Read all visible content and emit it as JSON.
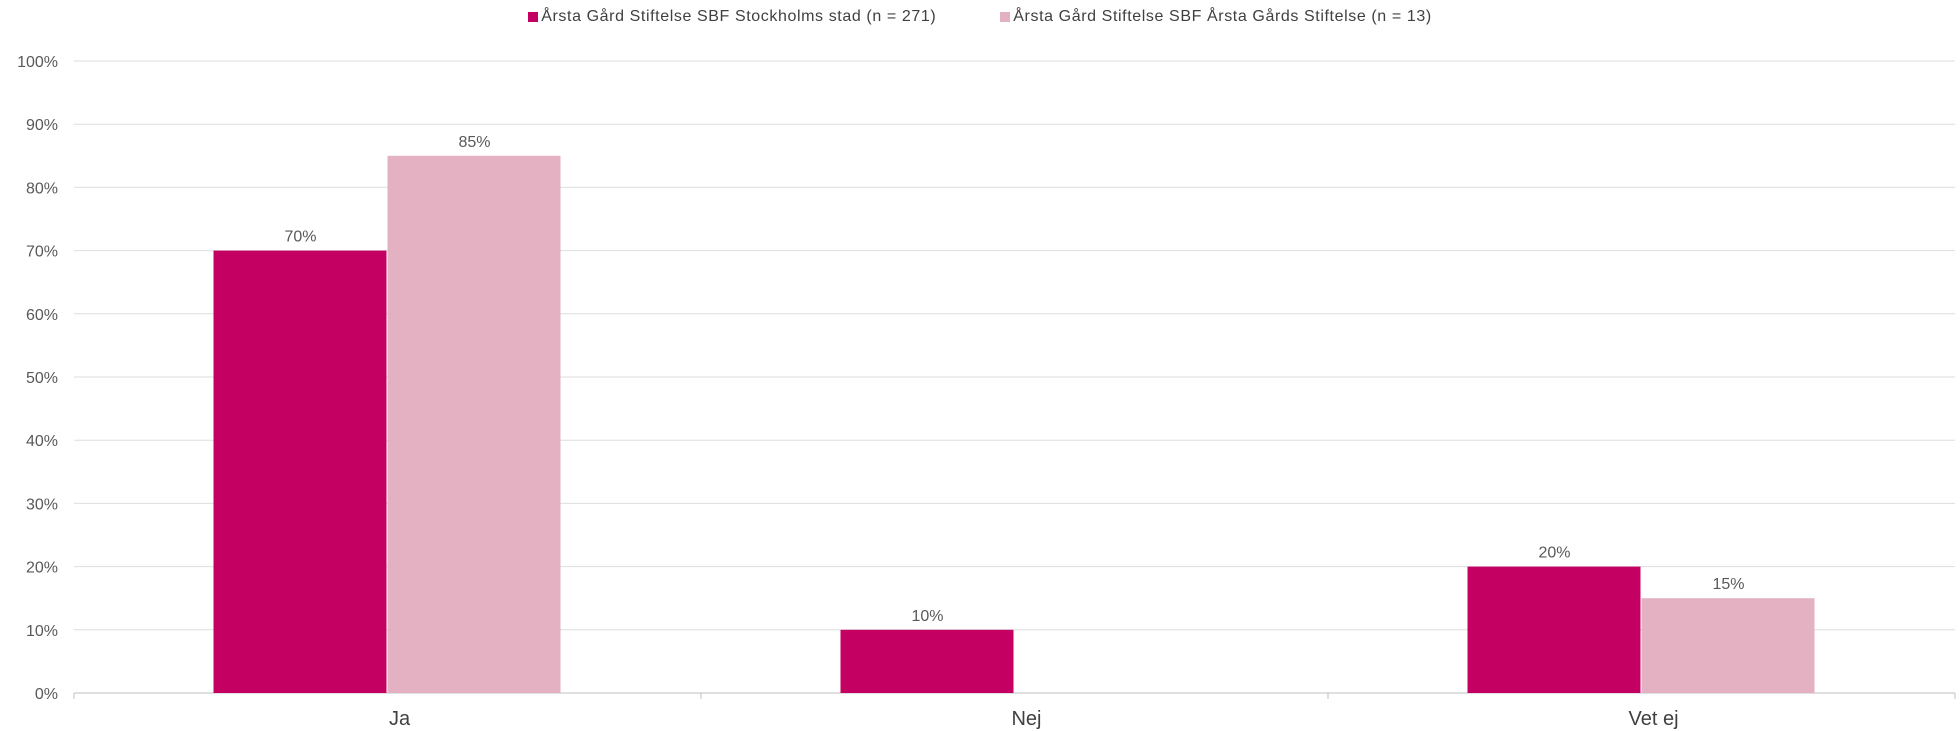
{
  "chart_data": {
    "type": "bar",
    "categories": [
      "Ja",
      "Nej",
      "Vet ej"
    ],
    "series": [
      {
        "name": "Årsta Gård Stiftelse SBF Stockholms stad (n = 271)",
        "values": [
          70,
          10,
          20
        ],
        "color": "#c40062"
      },
      {
        "name": "Årsta Gård Stiftelse SBF Årsta Gårds Stiftelse (n = 13)",
        "values": [
          85,
          0,
          15
        ],
        "color": "#e3b1c2"
      }
    ],
    "data_labels": [
      [
        "70%",
        "10%",
        "20%"
      ],
      [
        "85%",
        "",
        "15%"
      ]
    ],
    "ylim": [
      0,
      100
    ],
    "yticks": [
      0,
      10,
      20,
      30,
      40,
      50,
      60,
      70,
      80,
      90,
      100
    ],
    "ytick_labels": [
      "0%",
      "10%",
      "20%",
      "30%",
      "40%",
      "50%",
      "60%",
      "70%",
      "80%",
      "90%",
      "100%"
    ],
    "legend_position": "top-center",
    "grid": true,
    "title": "",
    "xlabel": "",
    "ylabel": ""
  }
}
